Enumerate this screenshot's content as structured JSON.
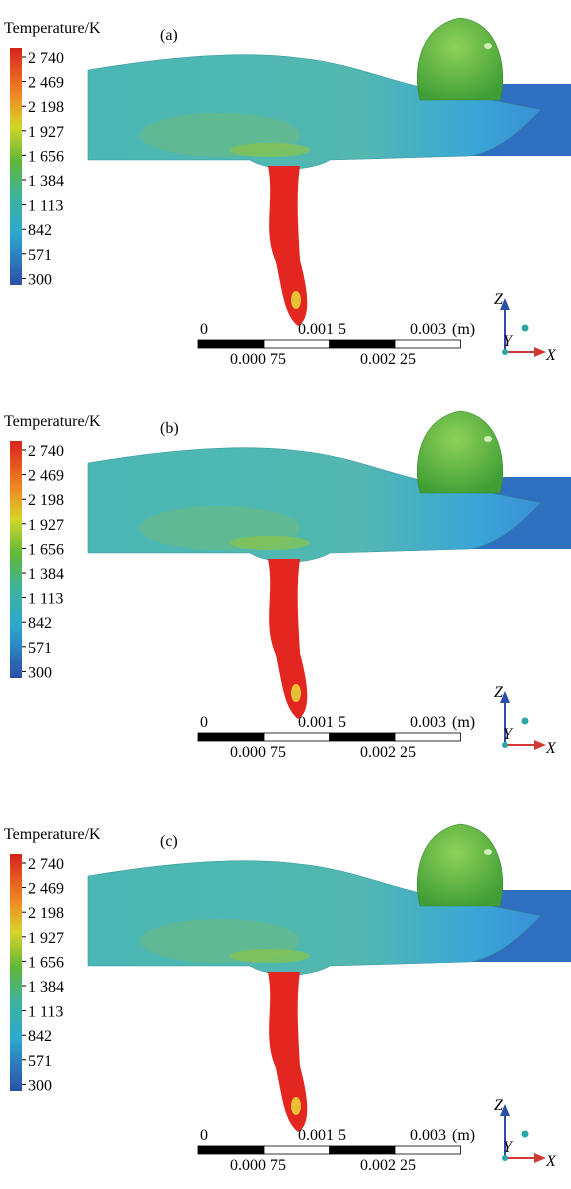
{
  "colorbar": {
    "title": "Temperature/K",
    "ticks": [
      "2 740",
      "2 469",
      "2 198",
      "1 927",
      "1 656",
      "1 384",
      "1 113",
      "842",
      "571",
      "300"
    ]
  },
  "panels": [
    {
      "label": "(a)"
    },
    {
      "label": "(b)"
    },
    {
      "label": "(c)"
    }
  ],
  "scale_bar": {
    "top_labels": [
      "0",
      "0.001 5",
      "0.003"
    ],
    "unit": "(m)",
    "bottom_labels": [
      "0.000 75",
      "0.002 25"
    ]
  },
  "axes": {
    "z": "Z",
    "y": "Y",
    "x": "X"
  }
}
